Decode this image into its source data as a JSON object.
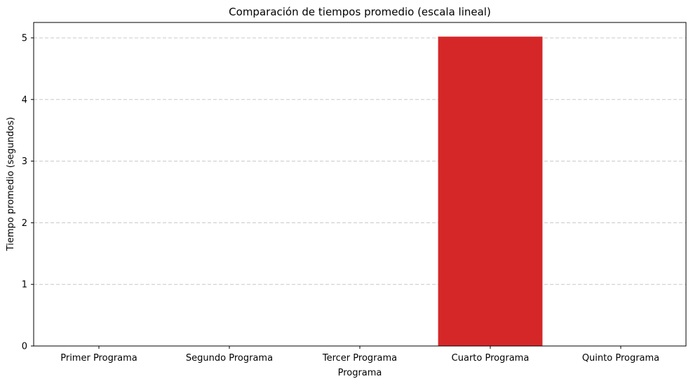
{
  "chart_data": {
    "type": "bar",
    "title": "Comparación de tiempos promedio (escala lineal)",
    "xlabel": "Programa",
    "ylabel": "Tiempo promedio (segundos)",
    "categories": [
      "Primer Programa",
      "Segundo Programa",
      "Tercer Programa",
      "Cuarto Programa",
      "Quinto Programa"
    ],
    "values": [
      0.001,
      0.001,
      0.001,
      5.02,
      0.001
    ],
    "ylim": [
      0,
      5.25
    ],
    "yticks": [
      0,
      1,
      2,
      3,
      4,
      5
    ],
    "grid": "y-dashed",
    "colors": [
      "#1f77b4",
      "#ff7f0e",
      "#2ca02c",
      "#d62728",
      "#9467bd"
    ]
  }
}
